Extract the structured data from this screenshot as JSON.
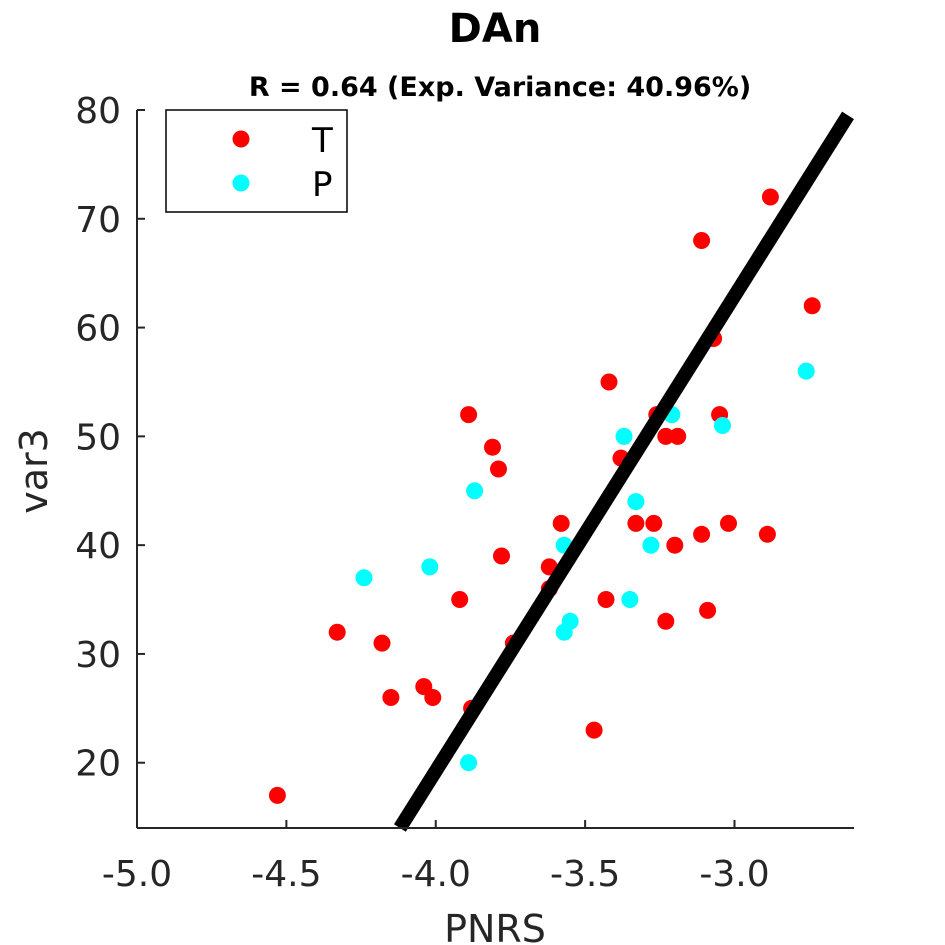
{
  "chart_data": {
    "type": "scatter",
    "title": "DAn",
    "subtitle": "R = 0.64 (Exp. Variance: 40.96%)",
    "xlabel": "PNRS",
    "ylabel": "var3",
    "xlim": [
      -5.0,
      -2.6
    ],
    "ylim": [
      14,
      80
    ],
    "xticks": [
      -5.0,
      -4.5,
      -4.0,
      -3.5,
      -3.0
    ],
    "xtick_labels": [
      "-5.0",
      "-4.5",
      "-4.0",
      "-3.5",
      "-3.0"
    ],
    "yticks": [
      20,
      30,
      40,
      50,
      60,
      70,
      80
    ],
    "ytick_labels": [
      "20",
      "30",
      "40",
      "50",
      "60",
      "70",
      "80"
    ],
    "grid": false,
    "legend_position": "top-left",
    "series": [
      {
        "name": "T",
        "color": "#ff0000",
        "points": [
          [
            -4.53,
            17
          ],
          [
            -4.33,
            32
          ],
          [
            -4.18,
            31
          ],
          [
            -4.15,
            26
          ],
          [
            -4.04,
            27
          ],
          [
            -4.01,
            26
          ],
          [
            -3.92,
            35
          ],
          [
            -3.88,
            25
          ],
          [
            -3.89,
            52
          ],
          [
            -3.81,
            49
          ],
          [
            -3.79,
            47
          ],
          [
            -3.78,
            39
          ],
          [
            -3.74,
            31
          ],
          [
            -3.62,
            38
          ],
          [
            -3.62,
            36
          ],
          [
            -3.58,
            42
          ],
          [
            -3.47,
            23
          ],
          [
            -3.43,
            35
          ],
          [
            -3.42,
            55
          ],
          [
            -3.38,
            48
          ],
          [
            -3.33,
            42
          ],
          [
            -3.27,
            42
          ],
          [
            -3.26,
            52
          ],
          [
            -3.23,
            33
          ],
          [
            -3.23,
            50
          ],
          [
            -3.2,
            40
          ],
          [
            -3.19,
            50
          ],
          [
            -3.11,
            68
          ],
          [
            -3.11,
            41
          ],
          [
            -3.09,
            34
          ],
          [
            -3.07,
            59
          ],
          [
            -3.05,
            52
          ],
          [
            -3.02,
            42
          ],
          [
            -2.89,
            41
          ],
          [
            -2.88,
            72
          ],
          [
            -2.74,
            62
          ]
        ]
      },
      {
        "name": "P",
        "color": "#00ffff",
        "points": [
          [
            -4.24,
            37
          ],
          [
            -4.02,
            38
          ],
          [
            -3.89,
            20
          ],
          [
            -3.87,
            45
          ],
          [
            -3.57,
            32
          ],
          [
            -3.57,
            40
          ],
          [
            -3.55,
            33
          ],
          [
            -3.37,
            50
          ],
          [
            -3.35,
            35
          ],
          [
            -3.33,
            44
          ],
          [
            -3.28,
            40
          ],
          [
            -3.21,
            52
          ],
          [
            -3.04,
            51
          ],
          [
            -2.76,
            56
          ]
        ]
      }
    ],
    "fit_line": {
      "color": "#000000",
      "x": [
        -4.12,
        -2.62
      ],
      "y": [
        14,
        79.5
      ]
    }
  }
}
